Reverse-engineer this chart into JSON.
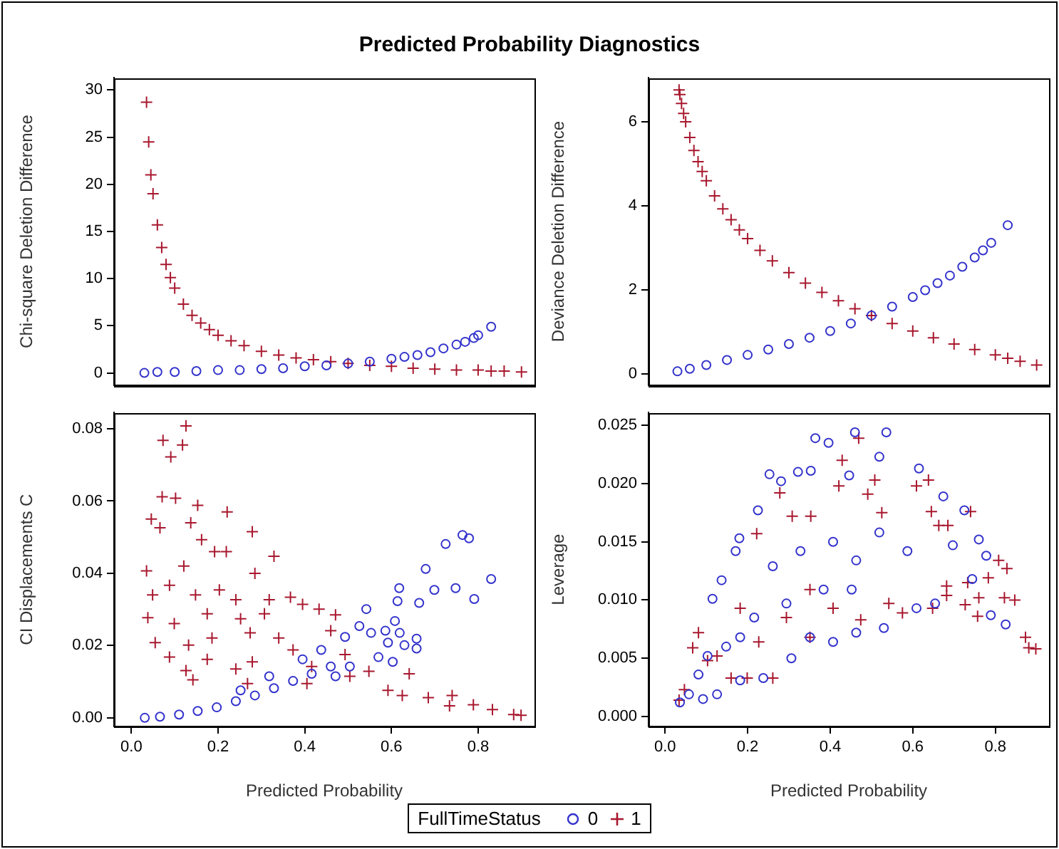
{
  "chart_data": [
    {
      "type": "scatter",
      "title": "Predicted Probability Diagnostics",
      "legend": "bottom",
      "legend_title": "FullTimeStatus",
      "ylabel": "Chi-square Deletion Difference",
      "xlim": [
        -0.04,
        0.93
      ],
      "ylim": [
        -1.3,
        31.3
      ],
      "yticks": [
        0,
        5,
        10,
        15,
        20,
        25,
        30
      ],
      "tick_labels": "y",
      "series": [
        {
          "name": "0",
          "color": "#3333cc",
          "marker": "circle",
          "x": [
            0.03,
            0.06,
            0.1,
            0.15,
            0.2,
            0.25,
            0.3,
            0.35,
            0.4,
            0.45,
            0.5,
            0.55,
            0.6,
            0.63,
            0.66,
            0.69,
            0.72,
            0.75,
            0.77,
            0.79,
            0.8,
            0.83
          ],
          "values": [
            0,
            0.1,
            0.1,
            0.2,
            0.3,
            0.3,
            0.4,
            0.5,
            0.7,
            0.8,
            1,
            1.2,
            1.5,
            1.7,
            1.9,
            2.2,
            2.6,
            3,
            3.3,
            3.7,
            4,
            4.9
          ]
        },
        {
          "name": "1",
          "color": "#a8182e",
          "marker": "cross",
          "x": [
            0.035,
            0.04,
            0.045,
            0.05,
            0.06,
            0.07,
            0.08,
            0.09,
            0.1,
            0.12,
            0.14,
            0.16,
            0.18,
            0.2,
            0.23,
            0.26,
            0.3,
            0.34,
            0.38,
            0.42,
            0.46,
            0.5,
            0.55,
            0.6,
            0.65,
            0.7,
            0.75,
            0.8,
            0.83,
            0.86,
            0.9
          ],
          "values": [
            28.7,
            24.5,
            21,
            19,
            15.7,
            13.3,
            11.5,
            10.1,
            9,
            7.3,
            6.1,
            5.3,
            4.6,
            4,
            3.4,
            2.9,
            2.3,
            1.9,
            1.6,
            1.4,
            1.2,
            1,
            0.8,
            0.7,
            0.5,
            0.4,
            0.3,
            0.3,
            0.2,
            0.2,
            0.1
          ]
        }
      ]
    },
    {
      "type": "scatter",
      "ylabel": "Deviance Deletion Difference",
      "xlim": [
        -0.04,
        0.93
      ],
      "ylim": [
        -0.27,
        7.05
      ],
      "yticks": [
        0,
        2,
        4,
        6
      ],
      "tick_labels": "y",
      "series": [
        {
          "name": "0",
          "color": "#3333cc",
          "marker": "circle",
          "x": [
            0.03,
            0.06,
            0.1,
            0.15,
            0.2,
            0.25,
            0.3,
            0.35,
            0.4,
            0.45,
            0.5,
            0.55,
            0.6,
            0.63,
            0.66,
            0.69,
            0.72,
            0.75,
            0.77,
            0.79,
            0.83
          ],
          "values": [
            0.06,
            0.12,
            0.21,
            0.33,
            0.45,
            0.58,
            0.71,
            0.86,
            1.02,
            1.2,
            1.39,
            1.6,
            1.83,
            1.99,
            2.16,
            2.34,
            2.55,
            2.77,
            2.94,
            3.12,
            3.54
          ]
        },
        {
          "name": "1",
          "color": "#a8182e",
          "marker": "cross",
          "x": [
            0.034,
            0.036,
            0.04,
            0.045,
            0.05,
            0.06,
            0.07,
            0.08,
            0.09,
            0.1,
            0.12,
            0.14,
            0.16,
            0.18,
            0.2,
            0.23,
            0.26,
            0.3,
            0.34,
            0.38,
            0.42,
            0.46,
            0.5,
            0.55,
            0.6,
            0.65,
            0.7,
            0.75,
            0.8,
            0.83,
            0.86,
            0.9
          ],
          "values": [
            6.76,
            6.65,
            6.44,
            6.2,
            6,
            5.63,
            5.32,
            5.05,
            4.82,
            4.6,
            4.24,
            3.93,
            3.67,
            3.43,
            3.22,
            2.94,
            2.69,
            2.41,
            2.16,
            1.94,
            1.74,
            1.55,
            1.39,
            1.2,
            1.02,
            0.86,
            0.71,
            0.58,
            0.45,
            0.37,
            0.3,
            0.21
          ]
        }
      ]
    },
    {
      "type": "scatter",
      "xlabel": "Predicted Probability",
      "ylabel": "CI Displacements C",
      "xlim": [
        -0.04,
        0.93
      ],
      "xticks": [
        {
          "value": 0,
          "label": "0.0"
        },
        {
          "value": 0.2,
          "label": "0.2"
        },
        {
          "value": 0.4,
          "label": "0.4"
        },
        {
          "value": 0.6,
          "label": "0.6"
        },
        {
          "value": 0.8,
          "label": "0.8"
        }
      ],
      "ylim": [
        -0.0024,
        0.0845
      ],
      "yticks": [
        {
          "value": 0,
          "label": "0.00"
        },
        {
          "value": 0.02,
          "label": "0.02"
        },
        {
          "value": 0.04,
          "label": "0.04"
        },
        {
          "value": 0.06,
          "label": "0.06"
        },
        {
          "value": 0.08,
          "label": "0.08"
        }
      ],
      "series": [
        {
          "name": "0",
          "color": "#3333cc",
          "marker": "circle",
          "x": [
            0.031,
            0.066,
            0.11,
            0.153,
            0.197,
            0.241,
            0.285,
            0.329,
            0.373,
            0.416,
            0.252,
            0.318,
            0.395,
            0.438,
            0.46,
            0.493,
            0.526,
            0.542,
            0.553,
            0.592,
            0.586,
            0.608,
            0.619,
            0.63,
            0.658,
            0.658,
            0.603,
            0.57,
            0.504,
            0.471,
            0.618,
            0.614,
            0.679,
            0.664,
            0.699,
            0.725,
            0.764,
            0.779,
            0.748,
            0.791,
            0.83
          ],
          "values": [
            0,
            0.0003,
            0.0009,
            0.0019,
            0.0029,
            0.0046,
            0.0062,
            0.0082,
            0.0102,
            0.0122,
            0.0076,
            0.0115,
            0.0162,
            0.0188,
            0.0142,
            0.0224,
            0.0254,
            0.0301,
            0.0235,
            0.0208,
            0.0241,
            0.0268,
            0.0235,
            0.0201,
            0.0219,
            0.0192,
            0.0155,
            0.0168,
            0.0142,
            0.0115,
            0.0359,
            0.0323,
            0.0412,
            0.0318,
            0.0354,
            0.0481,
            0.0506,
            0.0497,
            0.0359,
            0.0329,
            0.0384
          ]
        },
        {
          "name": "1",
          "color": "#a8182e",
          "marker": "cross",
          "x": [
            0.126,
            0.073,
            0.118,
            0.091,
            0.071,
            0.102,
            0.153,
            0.046,
            0.221,
            0.279,
            0.066,
            0.137,
            0.162,
            0.192,
            0.329,
            0.035,
            0.121,
            0.219,
            0.285,
            0.049,
            0.088,
            0.148,
            0.203,
            0.241,
            0.318,
            0.367,
            0.038,
            0.099,
            0.175,
            0.252,
            0.307,
            0.395,
            0.433,
            0.471,
            0.055,
            0.132,
            0.186,
            0.274,
            0.34,
            0.46,
            0.088,
            0.175,
            0.279,
            0.373,
            0.126,
            0.142,
            0.241,
            0.416,
            0.493,
            0.548,
            0.268,
            0.405,
            0.504,
            0.592,
            0.641,
            0.625,
            0.685,
            0.74,
            0.789,
            0.833,
            0.882,
            0.899,
            0.734
          ],
          "values": [
            0.0808,
            0.0768,
            0.0755,
            0.0722,
            0.0612,
            0.0608,
            0.0588,
            0.055,
            0.057,
            0.0515,
            0.0526,
            0.054,
            0.0493,
            0.046,
            0.0447,
            0.0407,
            0.042,
            0.046,
            0.04,
            0.034,
            0.0367,
            0.034,
            0.0354,
            0.0327,
            0.0327,
            0.0334,
            0.0277,
            0.0261,
            0.0288,
            0.0274,
            0.0288,
            0.0314,
            0.0301,
            0.0285,
            0.0208,
            0.0201,
            0.0221,
            0.0235,
            0.0221,
            0.0241,
            0.0168,
            0.0162,
            0.0155,
            0.0188,
            0.0131,
            0.0105,
            0.0135,
            0.0142,
            0.0175,
            0.0129,
            0.0095,
            0.0095,
            0.0115,
            0.0076,
            0.0122,
            0.0062,
            0.0056,
            0.0062,
            0.0036,
            0.0023,
            0.0009,
            0.0007,
            0.0033
          ]
        }
      ]
    },
    {
      "type": "scatter",
      "xlabel": "Predicted Probability",
      "ylabel": "Leverage",
      "xlim": [
        -0.04,
        0.93
      ],
      "xticks": [
        {
          "value": 0,
          "label": "0.0"
        },
        {
          "value": 0.2,
          "label": "0.2"
        },
        {
          "value": 0.4,
          "label": "0.4"
        },
        {
          "value": 0.6,
          "label": "0.6"
        },
        {
          "value": 0.8,
          "label": "0.8"
        }
      ],
      "ylim": [
        -0.00086,
        0.0261
      ],
      "yticks": [
        {
          "value": 0,
          "label": "0.000"
        },
        {
          "value": 0.005,
          "label": "0.005"
        },
        {
          "value": 0.01,
          "label": "0.010"
        },
        {
          "value": 0.015,
          "label": "0.015"
        },
        {
          "value": 0.02,
          "label": "0.020"
        },
        {
          "value": 0.025,
          "label": "0.025"
        }
      ],
      "series": [
        {
          "name": "0",
          "color": "#3333cc",
          "marker": "circle",
          "x": [
            0.036,
            0.058,
            0.081,
            0.103,
            0.115,
            0.137,
            0.171,
            0.18,
            0.225,
            0.253,
            0.281,
            0.322,
            0.353,
            0.364,
            0.396,
            0.46,
            0.536,
            0.519,
            0.446,
            0.615,
            0.674,
            0.725,
            0.697,
            0.76,
            0.778,
            0.744,
            0.789,
            0.825,
            0.654,
            0.609,
            0.53,
            0.463,
            0.407,
            0.351,
            0.306,
            0.238,
            0.182,
            0.126,
            0.092,
            0.261,
            0.328,
            0.407,
            0.463,
            0.519,
            0.587,
            0.384,
            0.294,
            0.216,
            0.182,
            0.148,
            0.452
          ],
          "values": [
            0.0012,
            0.0019,
            0.0036,
            0.0052,
            0.0101,
            0.0117,
            0.0142,
            0.0153,
            0.0177,
            0.0208,
            0.0202,
            0.021,
            0.0211,
            0.0239,
            0.0235,
            0.0244,
            0.0244,
            0.0223,
            0.0207,
            0.0213,
            0.0189,
            0.0177,
            0.0147,
            0.0152,
            0.0138,
            0.0118,
            0.0087,
            0.0079,
            0.0097,
            0.0093,
            0.0076,
            0.0072,
            0.0064,
            0.0068,
            0.005,
            0.0033,
            0.0031,
            0.0019,
            0.0015,
            0.0129,
            0.0142,
            0.015,
            0.0134,
            0.0158,
            0.0142,
            0.0109,
            0.0097,
            0.0085,
            0.0068,
            0.006,
            0.0109
          ]
        },
        {
          "name": "1",
          "color": "#a8182e",
          "marker": "cross",
          "x": [
            0.034,
            0.067,
            0.126,
            0.16,
            0.199,
            0.261,
            0.227,
            0.278,
            0.222,
            0.308,
            0.353,
            0.429,
            0.469,
            0.421,
            0.491,
            0.508,
            0.525,
            0.609,
            0.638,
            0.645,
            0.685,
            0.74,
            0.663,
            0.808,
            0.828,
            0.783,
            0.733,
            0.682,
            0.682,
            0.648,
            0.727,
            0.76,
            0.757,
            0.822,
            0.847,
            0.873,
            0.881,
            0.898,
            0.575,
            0.474,
            0.407,
            0.351,
            0.294,
            0.351,
            0.103,
            0.047,
            0.081,
            0.182,
            0.542
          ],
          "values": [
            0.0014,
            0.0059,
            0.0052,
            0.0033,
            0.0033,
            0.0033,
            0.0064,
            0.0192,
            0.0157,
            0.0172,
            0.0172,
            0.022,
            0.0239,
            0.0198,
            0.0191,
            0.0203,
            0.0175,
            0.0198,
            0.0203,
            0.0176,
            0.0164,
            0.0176,
            0.0164,
            0.0134,
            0.0127,
            0.0119,
            0.0115,
            0.0112,
            0.0104,
            0.0093,
            0.0096,
            0.0102,
            0.0086,
            0.0102,
            0.01,
            0.0068,
            0.0059,
            0.0058,
            0.0089,
            0.0083,
            0.0093,
            0.0109,
            0.0085,
            0.0068,
            0.0048,
            0.0023,
            0.0072,
            0.0093,
            0.0097
          ]
        }
      ]
    }
  ]
}
